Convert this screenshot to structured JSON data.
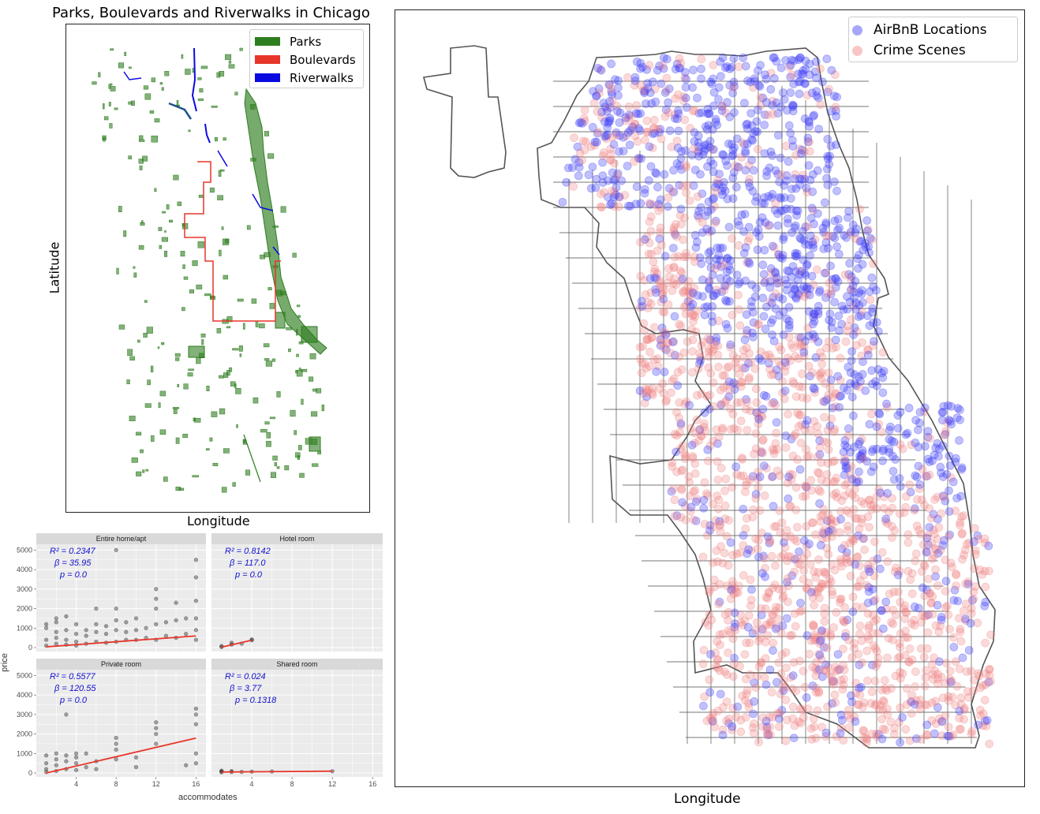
{
  "chart_data": [
    {
      "type": "map",
      "title": "Parks, Boulevards and Riverwalks in Chicago",
      "xlabel": "Longitude",
      "ylabel": "Latitude",
      "legend_position": "top-right",
      "series": [
        {
          "name": "Parks",
          "color": "#2e7d1f"
        },
        {
          "name": "Boulevards",
          "color": "#e8352a"
        },
        {
          "name": "Riverwalks",
          "color": "#0a0ae0"
        }
      ]
    },
    {
      "type": "scatter",
      "facets": [
        "Entire home/apt",
        "Hotel room",
        "Private room",
        "Shared room"
      ],
      "xlabel": "accommodates",
      "ylabel": "price",
      "xticks": [
        4,
        8,
        12,
        16
      ],
      "yticks": [
        0,
        1000,
        2000,
        3000,
        4000,
        5000
      ],
      "xlim": [
        0,
        17
      ],
      "ylim": [
        -200,
        5300
      ],
      "fit_color": "#e8352a",
      "panels": [
        {
          "facet": "Entire home/apt",
          "r2": "R² = 0.2347",
          "beta": "β = 35.95",
          "p": "p = 0.0",
          "fit": [
            [
              1,
              40
            ],
            [
              16,
              600
            ]
          ],
          "points": [
            [
              1,
              100
            ],
            [
              1,
              400
            ],
            [
              1,
              1000
            ],
            [
              1,
              1200
            ],
            [
              2,
              200
            ],
            [
              2,
              500
            ],
            [
              2,
              800
            ],
            [
              2,
              1300
            ],
            [
              2,
              1500
            ],
            [
              3,
              150
            ],
            [
              3,
              400
            ],
            [
              3,
              900
            ],
            [
              3,
              1600
            ],
            [
              4,
              100
            ],
            [
              4,
              300
            ],
            [
              4,
              700
            ],
            [
              4,
              1200
            ],
            [
              5,
              200
            ],
            [
              5,
              600
            ],
            [
              5,
              900
            ],
            [
              6,
              300
            ],
            [
              6,
              800
            ],
            [
              6,
              1200
            ],
            [
              6,
              2000
            ],
            [
              7,
              250
            ],
            [
              7,
              700
            ],
            [
              7,
              1100
            ],
            [
              8,
              300
            ],
            [
              8,
              900
            ],
            [
              8,
              1400
            ],
            [
              8,
              2000
            ],
            [
              8,
              5000
            ],
            [
              9,
              400
            ],
            [
              9,
              800
            ],
            [
              9,
              1300
            ],
            [
              10,
              400
            ],
            [
              10,
              900
            ],
            [
              10,
              1500
            ],
            [
              11,
              500
            ],
            [
              11,
              1000
            ],
            [
              12,
              400
            ],
            [
              12,
              1200
            ],
            [
              12,
              2000
            ],
            [
              12,
              2500
            ],
            [
              12,
              3000
            ],
            [
              13,
              600
            ],
            [
              13,
              1300
            ],
            [
              14,
              500
            ],
            [
              14,
              1400
            ],
            [
              14,
              2300
            ],
            [
              15,
              700
            ],
            [
              15,
              1500
            ],
            [
              16,
              400
            ],
            [
              16,
              900
            ],
            [
              16,
              1500
            ],
            [
              16,
              2400
            ],
            [
              16,
              3600
            ],
            [
              16,
              4500
            ]
          ]
        },
        {
          "facet": "Hotel room",
          "r2": "R² = 0.8142",
          "beta": "β = 117.0",
          "p": "p = 0.0",
          "fit": [
            [
              1,
              20
            ],
            [
              4,
              380
            ]
          ],
          "points": [
            [
              1,
              30
            ],
            [
              1,
              80
            ],
            [
              2,
              150
            ],
            [
              2,
              250
            ],
            [
              3,
              200
            ],
            [
              4,
              380
            ],
            [
              4,
              420
            ]
          ]
        },
        {
          "facet": "Private room",
          "r2": "R² = 0.5577",
          "beta": "β = 120.55",
          "p": "p = 0.0",
          "fit": [
            [
              1,
              0
            ],
            [
              16,
              1790
            ]
          ],
          "points": [
            [
              1,
              50
            ],
            [
              1,
              200
            ],
            [
              1,
              500
            ],
            [
              1,
              900
            ],
            [
              2,
              100
            ],
            [
              2,
              400
            ],
            [
              2,
              700
            ],
            [
              2,
              1000
            ],
            [
              3,
              200
            ],
            [
              3,
              600
            ],
            [
              3,
              900
            ],
            [
              3,
              3000
            ],
            [
              4,
              150
            ],
            [
              4,
              500
            ],
            [
              4,
              800
            ],
            [
              4,
              1000
            ],
            [
              5,
              300
            ],
            [
              5,
              1000
            ],
            [
              6,
              200
            ],
            [
              6,
              600
            ],
            [
              8,
              700
            ],
            [
              8,
              1200
            ],
            [
              8,
              1500
            ],
            [
              8,
              1800
            ],
            [
              10,
              300
            ],
            [
              10,
              800
            ],
            [
              12,
              1500
            ],
            [
              12,
              2000
            ],
            [
              12,
              2300
            ],
            [
              12,
              2600
            ],
            [
              15,
              400
            ],
            [
              16,
              500
            ],
            [
              16,
              1000
            ],
            [
              16,
              2500
            ],
            [
              16,
              3000
            ],
            [
              16,
              3300
            ]
          ]
        },
        {
          "facet": "Shared room",
          "r2": "R² = 0.024",
          "beta": "β = 3.77",
          "p": "p = 0.1318",
          "fit": [
            [
              1,
              50
            ],
            [
              12,
              95
            ]
          ],
          "points": [
            [
              1,
              40
            ],
            [
              1,
              80
            ],
            [
              1,
              120
            ],
            [
              2,
              50
            ],
            [
              2,
              100
            ],
            [
              3,
              60
            ],
            [
              4,
              70
            ],
            [
              6,
              80
            ],
            [
              12,
              90
            ]
          ]
        }
      ]
    },
    {
      "type": "map",
      "xlabel": "Longitude",
      "legend_position": "top-right",
      "series": [
        {
          "name": "AirBnB Locations",
          "color": "#3a3af5"
        },
        {
          "name": "Crime Scenes",
          "color": "#f08080"
        }
      ]
    }
  ]
}
